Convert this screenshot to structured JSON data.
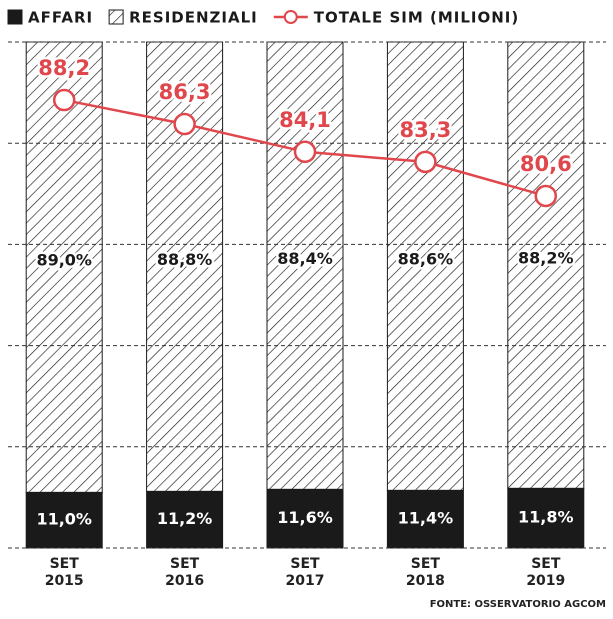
{
  "chart_data": {
    "type": "stacked-bar-line",
    "categories": [
      "SET 2015",
      "SET 2016",
      "SET 2017",
      "SET 2018",
      "SET 2019"
    ],
    "series": [
      {
        "name": "AFFARI",
        "color": "#1a1a1a",
        "values": [
          11.0,
          11.2,
          11.6,
          11.4,
          11.8
        ],
        "value_labels": [
          "11,0%",
          "11,2%",
          "11,6%",
          "11,4%",
          "11,8%"
        ]
      },
      {
        "name": "RESIDENZIALI",
        "color": "#1a1a1a",
        "pattern": "hatch",
        "values": [
          89.0,
          88.8,
          88.4,
          88.6,
          88.2
        ],
        "value_labels": [
          "89,0%",
          "88,8%",
          "88,4%",
          "88,6%",
          "88,2%"
        ]
      },
      {
        "name": "TOTALE SIM (MILIONI)",
        "color": "#e0474c",
        "type": "line",
        "axis": "y2",
        "values": [
          88.2,
          86.3,
          84.1,
          83.3,
          80.6
        ],
        "value_labels": [
          "88,2",
          "86,3",
          "84,1",
          "83,3",
          "80,6"
        ]
      }
    ],
    "ylim": [
      0,
      100
    ],
    "yticks": [
      0,
      20,
      40,
      60,
      80,
      100
    ],
    "grid": true,
    "y2lim": [
      52.7,
      92.8
    ],
    "source": "FONTE: OSSERVATORIO AGCOM"
  }
}
